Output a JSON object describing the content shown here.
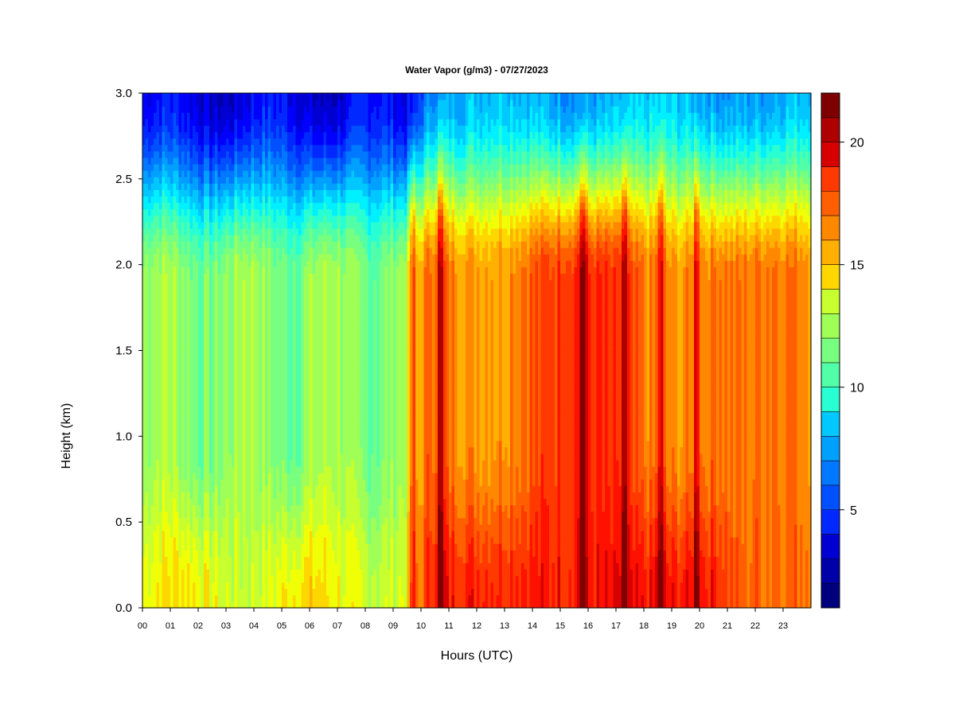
{
  "chart_data": {
    "type": "heatmap",
    "title": "Water Vapor (g/m3) - 07/27/2023",
    "xlabel": "Hours (UTC)",
    "ylabel": "Height (km)",
    "x_ticks": [
      "00",
      "01",
      "02",
      "03",
      "04",
      "05",
      "06",
      "07",
      "08",
      "09",
      "10",
      "11",
      "12",
      "13",
      "14",
      "15",
      "16",
      "17",
      "18",
      "19",
      "20",
      "21",
      "22",
      "23"
    ],
    "y_ticks": [
      "0.0",
      "0.5",
      "1.0",
      "1.5",
      "2.0",
      "2.5",
      "3.0"
    ],
    "xlim": [
      0,
      24
    ],
    "ylim": [
      0,
      3.0
    ],
    "colorbar": {
      "min": 1,
      "max": 22,
      "step": 1,
      "tick_values": [
        5,
        10,
        15,
        20
      ],
      "tick_labels": [
        "5",
        "10",
        "15",
        "20"
      ],
      "level_colors": [
        "#00007f",
        "#0000a8",
        "#0000d2",
        "#0000fc",
        "#0028ff",
        "#0050ff",
        "#0078ff",
        "#00a0ff",
        "#00c8ff",
        "#00f0ff",
        "#28ffd2",
        "#50ffa8",
        "#78ff7f",
        "#a0ff57",
        "#c8ff2e",
        "#f0ff06",
        "#ffd700",
        "#ffb000",
        "#ff8800",
        "#ff5f00",
        "#ff3900",
        "#ff1100",
        "#d70000",
        "#af0000",
        "#7f0000"
      ]
    },
    "description_ranges_gm3": {
      "near_surface_00_09h": [
        13,
        16
      ],
      "near_surface_10_20h": [
        18,
        20
      ],
      "mid_level_1km_00_09h": [
        11,
        13
      ],
      "mid_level_1km_10_20h": [
        16,
        21
      ],
      "top_3km_00_09h": [
        3,
        5
      ],
      "top_3km_10_23h": [
        7,
        9
      ]
    },
    "moist_plumes_hours": [
      9.7,
      10.7,
      15.8,
      17.3,
      18.6,
      19.9
    ],
    "grid": false
  }
}
